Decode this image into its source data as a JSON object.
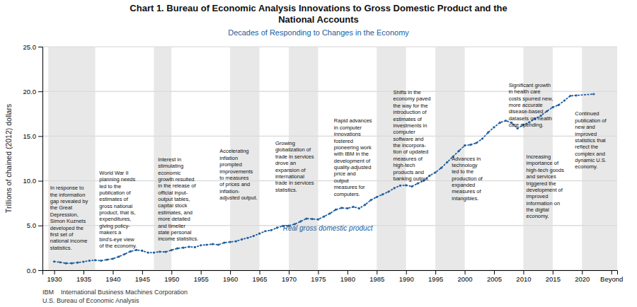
{
  "chart_data": {
    "type": "line",
    "title": "Chart 1. Bureau of Economic Analysis Innovations to Gross Domestic Product and the\nNational Accounts",
    "subtitle": "Decades of Responding to Changes in the Economy",
    "y_label": "Trillions of chained (2012) dollars",
    "xlim": [
      1928,
      2026
    ],
    "xticks": [
      1930,
      1935,
      1940,
      1945,
      1950,
      1955,
      1960,
      1965,
      1970,
      1975,
      1980,
      1985,
      1990,
      1995,
      2000,
      2005,
      2010,
      2015,
      2020,
      {
        "value": 2025,
        "label": "Beyond"
      }
    ],
    "ylim": [
      0.0,
      25.0
    ],
    "yticks": [
      {
        "value": 0.0,
        "label": "0.0"
      },
      {
        "value": 5.0,
        "label": "5.0"
      },
      {
        "value": 10.0,
        "label": "10.0"
      },
      {
        "value": 15.0,
        "label": "15.0"
      },
      {
        "value": 20.0,
        "label": "20.0"
      },
      {
        "value": 25.0,
        "label": "25.0"
      }
    ],
    "grid": true,
    "x": [
      1930,
      1931,
      1932,
      1933,
      1934,
      1935,
      1936,
      1937,
      1938,
      1939,
      1940,
      1941,
      1942,
      1943,
      1944,
      1945,
      1946,
      1947,
      1948,
      1949,
      1950,
      1951,
      1952,
      1953,
      1954,
      1955,
      1956,
      1957,
      1958,
      1959,
      1960,
      1961,
      1962,
      1963,
      1964,
      1965,
      1966,
      1967,
      1968,
      1969,
      1970,
      1971,
      1972,
      1973,
      1974,
      1975,
      1976,
      1977,
      1978,
      1979,
      1980,
      1981,
      1982,
      1983,
      1984,
      1985,
      1986,
      1987,
      1988,
      1989,
      1990,
      1991,
      1992,
      1993,
      1994,
      1995,
      1996,
      1997,
      1998,
      1999,
      2000,
      2001,
      2002,
      2003,
      2004,
      2005,
      2006,
      2007,
      2008,
      2009,
      2010,
      2011,
      2012,
      2013,
      2014,
      2015,
      2016,
      2017,
      2018,
      2019,
      2022
    ],
    "series": [
      {
        "name": "Real gross domestic product",
        "color": "#2060a0",
        "line_style": "dotted",
        "marker": "circle",
        "label_x": 1969,
        "label_y": 4.3,
        "values": [
          0.97,
          0.89,
          0.78,
          0.78,
          0.86,
          0.95,
          1.07,
          1.12,
          1.07,
          1.18,
          1.28,
          1.51,
          1.8,
          2.1,
          2.26,
          2.18,
          1.97,
          1.97,
          2.07,
          2.05,
          2.25,
          2.44,
          2.52,
          2.62,
          2.58,
          2.79,
          2.85,
          2.92,
          2.85,
          3.08,
          3.16,
          3.24,
          3.45,
          3.62,
          3.83,
          4.1,
          4.37,
          4.48,
          4.75,
          4.95,
          4.97,
          5.15,
          5.45,
          5.77,
          5.73,
          5.68,
          6.01,
          6.34,
          6.77,
          6.97,
          6.92,
          7.09,
          6.92,
          7.31,
          7.85,
          8.19,
          8.48,
          8.78,
          9.18,
          9.47,
          9.5,
          9.37,
          9.71,
          10.01,
          10.57,
          10.93,
          11.44,
          12.08,
          12.7,
          13.34,
          13.95,
          14.03,
          14.24,
          14.71,
          15.41,
          15.99,
          16.5,
          16.73,
          16.49,
          15.87,
          16.26,
          16.54,
          16.94,
          17.28,
          17.78,
          18.22,
          18.48,
          18.98,
          19.5,
          19.55,
          19.7
        ]
      }
    ],
    "shaded_bands": [
      [
        1929,
        1937
      ],
      [
        1947,
        1950
      ],
      [
        1960,
        1965
      ],
      [
        1970,
        1975
      ],
      [
        1985,
        1990
      ],
      [
        1995,
        2000
      ],
      [
        2010,
        2015
      ],
      [
        2020,
        2026
      ]
    ],
    "annotations": [
      {
        "x": 1929.3,
        "y": 9.5,
        "text": "In response to\nthe information\ngap revealed by\nthe Great\nDepression,\nSimon Kuznets\ndeveloped the\nfirst set of\nnational income\nstatistics."
      },
      {
        "x": 1937.7,
        "y": 11.2,
        "text": "World War II\nplanning needs\nled to the\npublication of\nestimates of\ngross national\nproduct, that is,\nexpenditures,\ngiving policy-\nmakers a\nbird's-eye view\nof the economy."
      },
      {
        "x": 1947.7,
        "y": 12.7,
        "text": "Interest in\nstimulating\neconomic\ngrowth resulted\nin the release of\nofficial input-\noutput tables,\ncapital stock\nestimates, and\nmore detailed\nand timelier\nstate personal\nincome statistics."
      },
      {
        "x": 1958.2,
        "y": 13.6,
        "text": "Accelerating\ninflation\nprompted\nimprovements\nto measures\nof prices and\ninflation-\nadjusted output."
      },
      {
        "x": 1967.7,
        "y": 14.5,
        "text": "Growing\nglobalization of\ntrade in services\ndrove an\nexpansion of\ninternational\ntrade in services\nstatistics."
      },
      {
        "x": 1977.7,
        "y": 17.0,
        "text": "Rapid advances\nin computer\ninnovations\nfostered\npioneering work\nwith IBM in the\ndevelopment of\nquality-adjusted\nprice and\noutput\nmeasures for\ncomputers."
      },
      {
        "x": 1987.8,
        "y": 20.2,
        "text": "Shifts in the\neconomy paved\nthe way for the\nintroduction of\nestimates of\ninvestments in\ncomputer\nsoftware and\nthe incorpora-\ntion of updated\nmeasures of\nhigh-tech\nproducts and\nbanking output."
      },
      {
        "x": 1997.8,
        "y": 12.8,
        "text": "Advances in\ntechnology\nled to the\nproduction of\nexpanded\nmeasures of\nintangibles."
      },
      {
        "x": 2007.5,
        "y": 21.0,
        "text": "Significant growth\nin health care\ncosts spurred new,\nmore accurate\ndisease-based\ndatasets on health\ncare spending."
      },
      {
        "x": 2010.5,
        "y": 13.0,
        "text": "Increasing\nimportance of\nhigh-tech goods\nand services\ntriggered the\ndevelopment of\nimproved\ninformation on\nthe digital\neconomy."
      },
      {
        "x": 2018.8,
        "y": 17.8,
        "text": "Continued\npublication of\nnew and\nimproved\nstatistics that\nreflect the\ncomplex and\ndynamic U.S.\neconomy."
      }
    ],
    "footnotes": [
      "IBM    International Business Machines Corporation",
      "U.S. Bureau of Economic Analysis"
    ]
  }
}
